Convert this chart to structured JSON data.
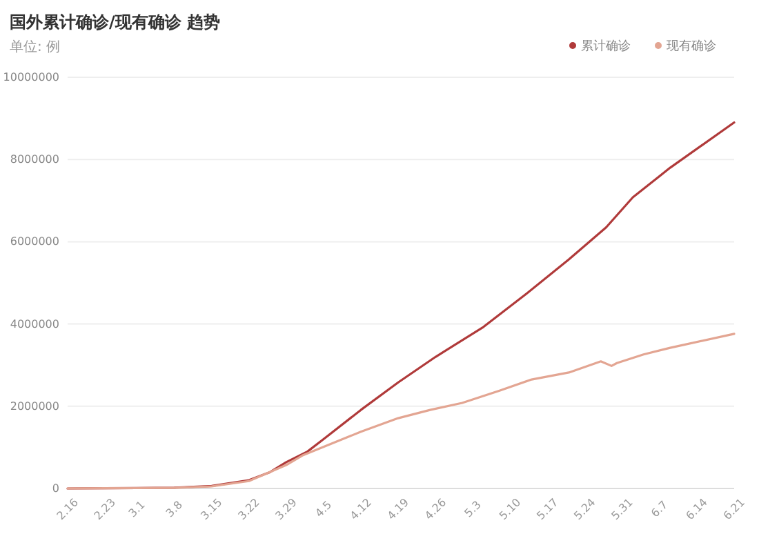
{
  "chart_data": {
    "type": "line",
    "title": "国外累计确诊/现有确诊 趋势",
    "subtitle": "单位: 例",
    "series": [
      {
        "name": "累计确诊",
        "color": "#b03a3a",
        "x": [
          "--02-16",
          "--02-23",
          "--03-01",
          "--03-08",
          "--03-15",
          "--03-22",
          "--03-26",
          "--03-29",
          "--04-02",
          "--04-05",
          "--04-12",
          "--04-19",
          "--04-26",
          "--05-05",
          "--05-13",
          "--05-21",
          "--05-28",
          "--06-02",
          "--06-09",
          "--06-21"
        ],
        "values": [
          0,
          5000,
          10000,
          20000,
          60000,
          200000,
          400000,
          640000,
          900000,
          1200000,
          1910000,
          2580000,
          3200000,
          3930000,
          4730000,
          5570000,
          6350000,
          7080000,
          7800000,
          8900000
        ]
      },
      {
        "name": "现有确诊",
        "color": "#e3a592",
        "x": [
          "--02-16",
          "--02-23",
          "--03-01",
          "--03-08",
          "--03-15",
          "--03-22",
          "--03-29",
          "--04-01",
          "--04-12",
          "--04-19",
          "--04-25",
          "--05-01",
          "--05-08",
          "--05-14",
          "--05-21",
          "--05-27",
          "--05-29",
          "--05-30",
          "--06-04",
          "--06-09",
          "--06-21"
        ],
        "values": [
          0,
          5000,
          8000,
          15000,
          50000,
          180000,
          570000,
          800000,
          1380000,
          1710000,
          1910000,
          2080000,
          2380000,
          2650000,
          2820000,
          3090000,
          2980000,
          3050000,
          3260000,
          3420000,
          3760000
        ]
      }
    ],
    "xlim": [
      "--02-16",
      "--06-21"
    ],
    "xticks": [
      {
        "value": "--02-16",
        "label": "2.16"
      },
      {
        "value": "--02-23",
        "label": "2.23"
      },
      {
        "value": "--03-01",
        "label": "3.1"
      },
      {
        "value": "--03-08",
        "label": "3.8"
      },
      {
        "value": "--03-15",
        "label": "3.15"
      },
      {
        "value": "--03-22",
        "label": "3.22"
      },
      {
        "value": "--03-29",
        "label": "3.29"
      },
      {
        "value": "--04-05",
        "label": "4.5"
      },
      {
        "value": "--04-12",
        "label": "4.12"
      },
      {
        "value": "--04-19",
        "label": "4.19"
      },
      {
        "value": "--04-26",
        "label": "4.26"
      },
      {
        "value": "--05-03",
        "label": "5.3"
      },
      {
        "value": "--05-10",
        "label": "5.10"
      },
      {
        "value": "--05-17",
        "label": "5.17"
      },
      {
        "value": "--05-24",
        "label": "5.24"
      },
      {
        "value": "--05-31",
        "label": "5.31"
      },
      {
        "value": "--06-07",
        "label": "6.7"
      },
      {
        "value": "--06-14",
        "label": "6.14"
      },
      {
        "value": "--06-21",
        "label": "6.21"
      }
    ],
    "ylim": [
      0,
      10000000
    ],
    "yticks": [
      0,
      2000000,
      4000000,
      6000000,
      8000000,
      10000000
    ],
    "grid": "y",
    "legend": "top right"
  }
}
